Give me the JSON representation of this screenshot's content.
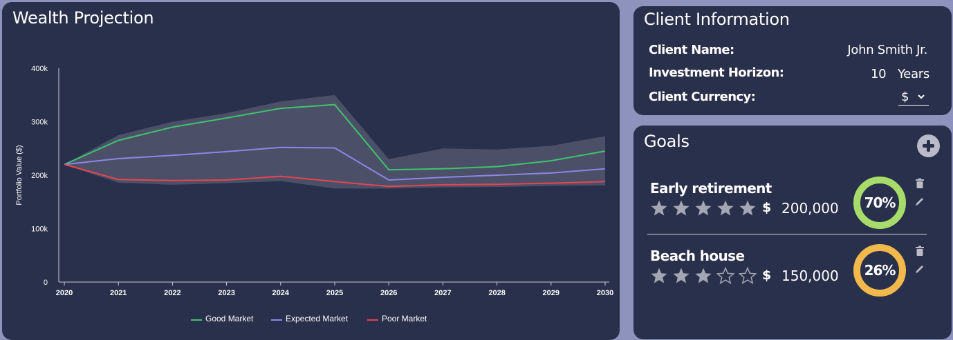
{
  "chart": {
    "title": "Wealth Projection",
    "colors": {
      "good": "#3ec46d",
      "expected": "#8b86e8",
      "poor": "#e8444f",
      "band": "#4b5068"
    }
  },
  "chart_data": {
    "type": "line",
    "x": [
      2020,
      2021,
      2022,
      2023,
      2024,
      2025,
      2026,
      2027,
      2028,
      2029,
      2030
    ],
    "x_tick_labels": [
      "2020",
      "2021",
      "2022",
      "2023",
      "2024",
      "2025",
      "2026",
      "2027",
      "2028",
      "2029",
      "2030"
    ],
    "ylabel": "Portfolio Value ($)",
    "ylim": [
      0,
      400000
    ],
    "y_tick_values": [
      0,
      100000,
      200000,
      300000,
      400000
    ],
    "y_tick_labels": [
      "0",
      "100k",
      "200k",
      "300k",
      "400k"
    ],
    "series": [
      {
        "name": "Good Market",
        "values": [
          220000,
          265000,
          290000,
          307000,
          325000,
          332000,
          210000,
          212000,
          216000,
          227000,
          245000
        ]
      },
      {
        "name": "Expected Market",
        "values": [
          220000,
          231000,
          237000,
          244000,
          252000,
          251000,
          191000,
          196000,
          200000,
          204000,
          212000
        ]
      },
      {
        "name": "Poor Market",
        "values": [
          220000,
          192000,
          190000,
          191000,
          198000,
          188000,
          179000,
          182000,
          183000,
          185000,
          188000
        ]
      }
    ],
    "band": {
      "upper": [
        220000,
        275000,
        300000,
        316000,
        338000,
        350000,
        230000,
        250000,
        248000,
        255000,
        273000
      ],
      "lower": [
        220000,
        186000,
        182000,
        185000,
        189000,
        175000,
        175000,
        177000,
        178000,
        180000,
        181000
      ]
    },
    "legend_position": "bottom-center",
    "grid": false
  },
  "client": {
    "title": "Client Information",
    "name_label": "Client Name:",
    "name_value": "John Smith Jr.",
    "horizon_label": "Investment Horizon:",
    "horizon_value": "10",
    "horizon_unit": "Years",
    "currency_label": "Client Currency:",
    "currency_value": "$"
  },
  "goals": {
    "title": "Goals",
    "add_icon": "plus-circle-icon",
    "items": [
      {
        "name": "Early retirement",
        "rating": 5,
        "max_rating": 5,
        "currency": "$",
        "amount": "200,000",
        "percent": 70,
        "percent_label": "70%",
        "ring_color": "#a8dc6a"
      },
      {
        "name": "Beach house",
        "rating": 3,
        "max_rating": 5,
        "currency": "$",
        "amount": "150,000",
        "percent": 26,
        "percent_label": "26%",
        "ring_color": "#f1b94c"
      }
    ]
  }
}
